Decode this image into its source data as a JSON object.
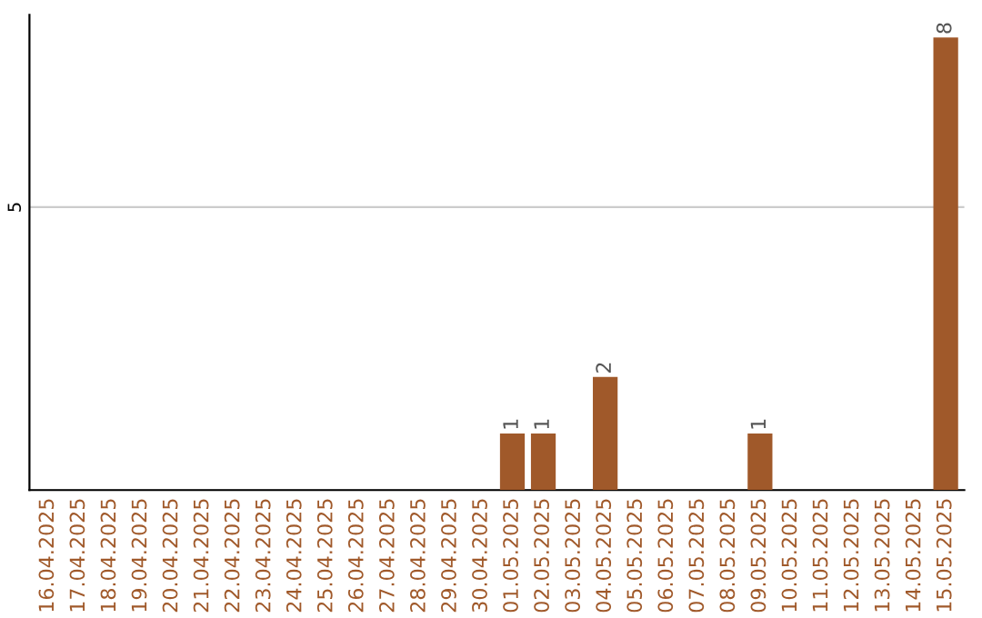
{
  "chart_data": {
    "type": "bar",
    "categories": [
      "16.04.2025",
      "17.04.2025",
      "18.04.2025",
      "19.04.2025",
      "20.04.2025",
      "21.04.2025",
      "22.04.2025",
      "23.04.2025",
      "24.04.2025",
      "25.04.2025",
      "26.04.2025",
      "27.04.2025",
      "28.04.2025",
      "29.04.2025",
      "30.04.2025",
      "01.05.2025",
      "02.05.2025",
      "03.05.2025",
      "04.05.2025",
      "05.05.2025",
      "06.05.2025",
      "07.05.2025",
      "08.05.2025",
      "09.05.2025",
      "10.05.2025",
      "11.05.2025",
      "12.05.2025",
      "13.05.2025",
      "14.05.2025",
      "15.05.2025"
    ],
    "values": [
      null,
      null,
      null,
      null,
      null,
      null,
      null,
      null,
      null,
      null,
      null,
      null,
      null,
      null,
      null,
      1,
      1,
      null,
      2,
      null,
      null,
      null,
      null,
      1,
      null,
      null,
      null,
      null,
      null,
      8
    ],
    "value_labels": [
      null,
      null,
      null,
      null,
      null,
      null,
      null,
      null,
      null,
      null,
      null,
      null,
      null,
      null,
      null,
      "1",
      "1",
      null,
      "2",
      null,
      null,
      null,
      null,
      "1",
      null,
      null,
      null,
      null,
      null,
      "8"
    ],
    "color": "#a0592a",
    "ylim": [
      0,
      8.4
    ],
    "yticks": [
      {
        "value": 0,
        "label": null
      },
      5
    ],
    "grid": "y"
  }
}
